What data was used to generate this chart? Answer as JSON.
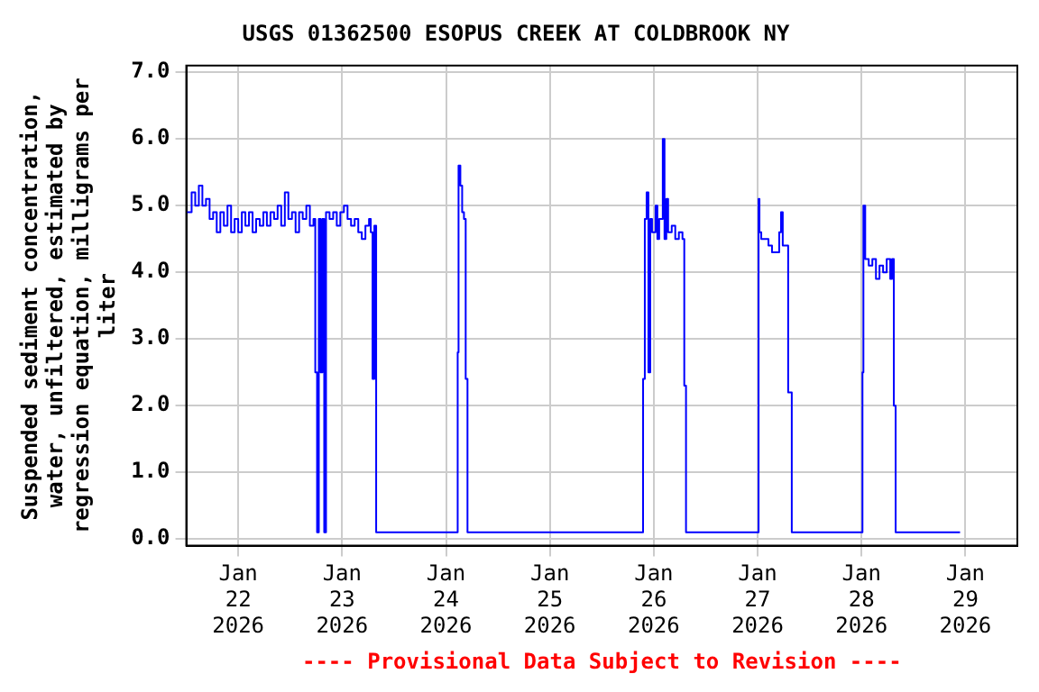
{
  "chart_data": {
    "type": "step",
    "title": "USGS 01362500 ESOPUS CREEK AT COLDBROOK NY",
    "ylabel": "Suspended sediment concentration, water, unfiltered, estimated by regression equation, milligrams per liter",
    "annotations": [
      "---- Provisional Data Subject to Revision ----"
    ],
    "xlim": [
      "2026-01-21T12:00",
      "2026-01-29T12:00"
    ],
    "xticks": [
      {
        "value": "2026-01-22",
        "label": "Jan 22 2026"
      },
      {
        "value": "2026-01-23",
        "label": "Jan 23 2026"
      },
      {
        "value": "2026-01-24",
        "label": "Jan 24 2026"
      },
      {
        "value": "2026-01-25",
        "label": "Jan 25 2026"
      },
      {
        "value": "2026-01-26",
        "label": "Jan 26 2026"
      },
      {
        "value": "2026-01-27",
        "label": "Jan 27 2026"
      },
      {
        "value": "2026-01-28",
        "label": "Jan 28 2026"
      },
      {
        "value": "2026-01-29",
        "label": "Jan 29 2026"
      }
    ],
    "ylim": [
      -0.1,
      7.1
    ],
    "yticks": [
      {
        "value": 0,
        "label": "0.0"
      },
      {
        "value": 1,
        "label": "1.0"
      },
      {
        "value": 2,
        "label": "2.0"
      },
      {
        "value": 3,
        "label": "3.0"
      },
      {
        "value": 4,
        "label": "4.0"
      },
      {
        "value": 5,
        "label": "5.0"
      },
      {
        "value": 6,
        "label": "6.0"
      },
      {
        "value": 7,
        "label": "7.0"
      }
    ],
    "grid": true,
    "legend": false,
    "marker": "none",
    "line_style": "solid",
    "series": [
      {
        "color": "#0000ff",
        "x": [
          "2026-01-21T12:00",
          "2026-01-21T13:14",
          "2026-01-21T14:04",
          "2026-01-21T14:54",
          "2026-01-21T15:43",
          "2026-01-21T16:33",
          "2026-01-21T17:23",
          "2026-01-21T18:12",
          "2026-01-21T19:02",
          "2026-01-21T19:52",
          "2026-01-21T20:41",
          "2026-01-21T21:31",
          "2026-01-21T22:21",
          "2026-01-21T23:10",
          "2026-01-22T00:00",
          "2026-01-22T00:50",
          "2026-01-22T01:39",
          "2026-01-22T02:29",
          "2026-01-22T03:19",
          "2026-01-22T04:08",
          "2026-01-22T04:58",
          "2026-01-22T05:48",
          "2026-01-22T06:37",
          "2026-01-22T07:27",
          "2026-01-22T08:17",
          "2026-01-22T09:06",
          "2026-01-22T09:56",
          "2026-01-22T10:46",
          "2026-01-22T11:35",
          "2026-01-22T12:25",
          "2026-01-22T13:15",
          "2026-01-22T14:04",
          "2026-01-22T14:54",
          "2026-01-22T15:44",
          "2026-01-22T16:33",
          "2026-01-22T17:23",
          "2026-01-22T17:48",
          "2026-01-22T18:13",
          "2026-01-22T18:37",
          "2026-01-22T19:02",
          "2026-01-22T19:27",
          "2026-01-22T19:52",
          "2026-01-22T20:17",
          "2026-01-22T21:06",
          "2026-01-22T21:56",
          "2026-01-22T22:46",
          "2026-01-22T23:35",
          "2026-01-23T00:25",
          "2026-01-23T01:15",
          "2026-01-23T02:04",
          "2026-01-23T02:54",
          "2026-01-23T03:44",
          "2026-01-23T04:33",
          "2026-01-23T05:23",
          "2026-01-23T06:13",
          "2026-01-23T06:37",
          "2026-01-23T07:02",
          "2026-01-23T07:27",
          "2026-01-23T07:52",
          "2026-01-24T02:29",
          "2026-01-24T02:42",
          "2026-01-24T02:54",
          "2026-01-24T03:19",
          "2026-01-24T03:44",
          "2026-01-24T04:09",
          "2026-01-24T04:33",
          "2026-01-24T04:58",
          "2026-01-25T21:07",
          "2026-01-25T21:32",
          "2026-01-25T21:56",
          "2026-01-25T22:21",
          "2026-01-25T22:46",
          "2026-01-25T23:11",
          "2026-01-25T23:36",
          "2026-01-26T00:25",
          "2026-01-26T00:50",
          "2026-01-26T01:15",
          "2026-01-26T02:05",
          "2026-01-26T02:29",
          "2026-01-26T02:54",
          "2026-01-26T03:19",
          "2026-01-26T04:09",
          "2026-01-26T04:58",
          "2026-01-26T05:48",
          "2026-01-26T06:38",
          "2026-01-26T07:03",
          "2026-01-26T07:27",
          "2026-01-27T00:00",
          "2026-01-27T00:13",
          "2026-01-27T00:25",
          "2026-01-27T00:50",
          "2026-01-27T01:40",
          "2026-01-27T02:30",
          "2026-01-27T03:19",
          "2026-01-27T04:09",
          "2026-01-27T04:59",
          "2026-01-27T05:24",
          "2026-01-27T05:48",
          "2026-01-27T06:38",
          "2026-01-27T07:03",
          "2026-01-27T07:53",
          "2026-01-28T00:00",
          "2026-01-28T00:13",
          "2026-01-28T00:26",
          "2026-01-28T00:51",
          "2026-01-28T01:40",
          "2026-01-28T02:30",
          "2026-01-28T03:20",
          "2026-01-28T04:09",
          "2026-01-28T04:59",
          "2026-01-28T05:49",
          "2026-01-28T06:38",
          "2026-01-28T07:03",
          "2026-01-28T07:28",
          "2026-01-28T07:53",
          "2026-01-28T22:46"
        ],
        "values": [
          4.9,
          5.2,
          5.0,
          5.3,
          5.0,
          5.1,
          4.8,
          4.9,
          4.6,
          4.9,
          4.7,
          5.0,
          4.6,
          4.8,
          4.6,
          4.9,
          4.7,
          4.9,
          4.6,
          4.8,
          4.7,
          4.9,
          4.7,
          4.9,
          4.8,
          5.0,
          4.7,
          5.2,
          4.8,
          4.9,
          4.6,
          4.9,
          4.8,
          5.0,
          4.7,
          4.8,
          2.5,
          0.1,
          4.8,
          2.5,
          4.8,
          0.1,
          4.9,
          4.8,
          4.9,
          4.7,
          4.9,
          5.0,
          4.8,
          4.7,
          4.8,
          4.6,
          4.5,
          4.7,
          4.8,
          4.6,
          2.4,
          4.7,
          0.1,
          0.1,
          2.8,
          5.6,
          5.3,
          4.9,
          4.8,
          2.4,
          0.1,
          0.1,
          2.4,
          4.8,
          5.2,
          2.5,
          4.8,
          4.6,
          5.0,
          4.5,
          4.8,
          6.0,
          4.5,
          5.1,
          4.6,
          4.7,
          4.5,
          4.6,
          4.5,
          2.3,
          0.1,
          0.1,
          5.1,
          4.6,
          4.5,
          4.5,
          4.4,
          4.3,
          4.3,
          4.6,
          4.9,
          4.4,
          4.4,
          2.2,
          0.1,
          0.1,
          2.5,
          5.0,
          4.2,
          4.1,
          4.2,
          3.9,
          4.1,
          4.0,
          4.2,
          3.9,
          4.2,
          2.0,
          0.1,
          0.1
        ]
      }
    ]
  }
}
